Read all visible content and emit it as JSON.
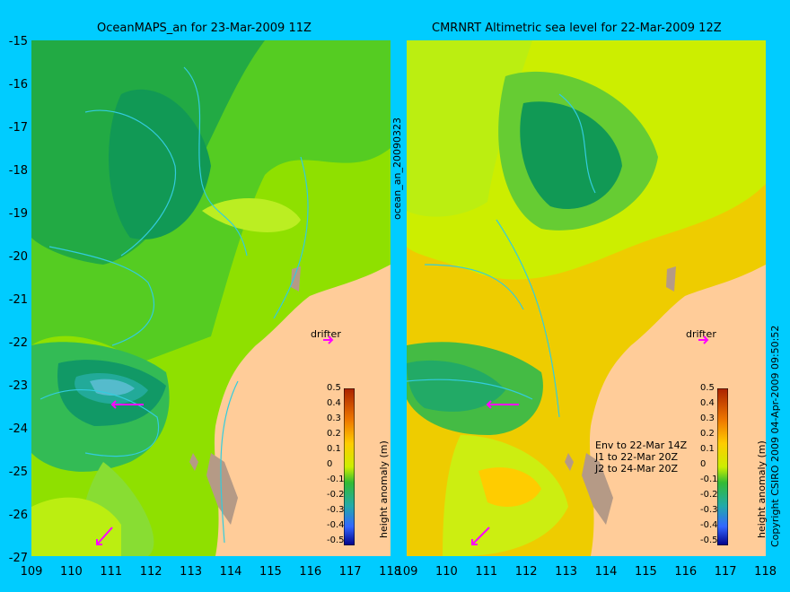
{
  "panels": {
    "left_title": "OceanMAPS_an for 23-Mar-2009 11Z",
    "right_title": "CMRNRT Altimetric sea level  for 22-Mar-2009 12Z"
  },
  "y_ticks": [
    "-15",
    "-16",
    "-17",
    "-18",
    "-19",
    "-20",
    "-21",
    "-22",
    "-23",
    "-24",
    "-25",
    "-26",
    "-27"
  ],
  "left_x_ticks": [
    "109",
    "110",
    "111",
    "112",
    "113",
    "114",
    "115",
    "116",
    "117",
    "118"
  ],
  "right_x_ticks": [
    "109",
    "110",
    "111",
    "112",
    "113",
    "114",
    "115",
    "116",
    "117",
    "118"
  ],
  "side_label": "ocean_an_20090323",
  "copyright": "Copyright CSIRO 2009  04-Apr-2009 09:50:52",
  "colorbar": {
    "label": "height anomaly (m)",
    "ticks": [
      "0.5",
      "0.4",
      "0.3",
      "0.2",
      "0.1",
      "0",
      "-0.1",
      "-0.2",
      "-0.3",
      "-0.4",
      "-0.5"
    ]
  },
  "drifter_label": "drifter",
  "right_legend": "Env to 22-Mar 14Z\nJ1 to 22-Mar 20Z\nJ2 to 24-Mar 20Z",
  "colors": {
    "background": "#00ccff",
    "land": "#ffcc99",
    "coast_rock": "#b59a86",
    "contour": "#33ccdd",
    "drifter_arrow": "#ff00ff"
  }
}
